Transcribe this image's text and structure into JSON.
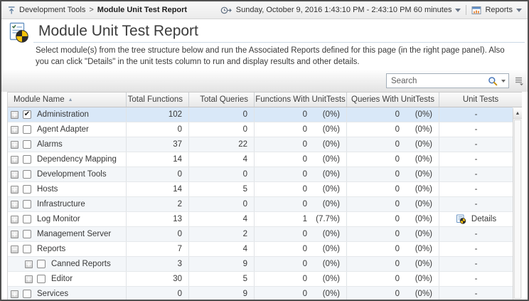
{
  "topbar": {
    "breadcrumb": {
      "parent": "Development Tools",
      "separator": ">",
      "current": "Module Unit Test Report"
    },
    "time_range_label": "Sunday, October 9, 2016 1:43:10 PM - 2:43:10 PM 60 minutes",
    "reports_label": "Reports"
  },
  "header": {
    "title": "Module Unit Test Report",
    "description": "Select module(s) from the tree structure below and run the Associated Reports defined for this page (in the right page panel). Also you can click \"Details\" in the unit tests column to run and display results and other details."
  },
  "toolbar": {
    "search_placeholder": "Search"
  },
  "icons": {
    "sort_asc": "▲",
    "scroll_up": "▲",
    "checkmark": "✔"
  },
  "colors": {
    "selected_row": "#d9e8f8",
    "stripe_row": "#f3f6f9",
    "pie_yellow": "#f6c20a",
    "pie_black": "#2b2b2b"
  },
  "table": {
    "columns": [
      {
        "label": "Module Name",
        "sorted": "asc"
      },
      {
        "label": "Total Functions"
      },
      {
        "label": "Total Queries"
      },
      {
        "label": "Functions With UnitTests"
      },
      {
        "label": "Queries With UnitTests"
      },
      {
        "label": "Unit Tests"
      }
    ],
    "rows": [
      {
        "name": "Administration",
        "level": 0,
        "expander": "plus",
        "checked": true,
        "selected": true,
        "total_functions": "102",
        "total_queries": "0",
        "functions_with_unittests": {
          "count": "0",
          "pct": "(0%)"
        },
        "queries_with_unittests": {
          "count": "0",
          "pct": "(0%)"
        },
        "unit_tests": {
          "label": "-"
        }
      },
      {
        "name": "Agent Adapter",
        "level": 0,
        "expander": "plus",
        "checked": false,
        "selected": false,
        "total_functions": "0",
        "total_queries": "0",
        "functions_with_unittests": {
          "count": "0",
          "pct": "(0%)"
        },
        "queries_with_unittests": {
          "count": "0",
          "pct": "(0%)"
        },
        "unit_tests": {
          "label": "-"
        }
      },
      {
        "name": "Alarms",
        "level": 0,
        "expander": "plus",
        "checked": false,
        "selected": false,
        "total_functions": "37",
        "total_queries": "22",
        "functions_with_unittests": {
          "count": "0",
          "pct": "(0%)"
        },
        "queries_with_unittests": {
          "count": "0",
          "pct": "(0%)"
        },
        "unit_tests": {
          "label": "-"
        }
      },
      {
        "name": "Dependency Mapping",
        "level": 0,
        "expander": "plus",
        "checked": false,
        "selected": false,
        "total_functions": "14",
        "total_queries": "4",
        "functions_with_unittests": {
          "count": "0",
          "pct": "(0%)"
        },
        "queries_with_unittests": {
          "count": "0",
          "pct": "(0%)"
        },
        "unit_tests": {
          "label": "-"
        }
      },
      {
        "name": "Development Tools",
        "level": 0,
        "expander": "plus",
        "checked": false,
        "selected": false,
        "total_functions": "0",
        "total_queries": "0",
        "functions_with_unittests": {
          "count": "0",
          "pct": "(0%)"
        },
        "queries_with_unittests": {
          "count": "0",
          "pct": "(0%)"
        },
        "unit_tests": {
          "label": "-"
        }
      },
      {
        "name": "Hosts",
        "level": 0,
        "expander": "plus",
        "checked": false,
        "selected": false,
        "total_functions": "14",
        "total_queries": "5",
        "functions_with_unittests": {
          "count": "0",
          "pct": "(0%)"
        },
        "queries_with_unittests": {
          "count": "0",
          "pct": "(0%)"
        },
        "unit_tests": {
          "label": "-"
        }
      },
      {
        "name": "Infrastructure",
        "level": 0,
        "expander": "plus",
        "checked": false,
        "selected": false,
        "total_functions": "2",
        "total_queries": "0",
        "functions_with_unittests": {
          "count": "0",
          "pct": "(0%)"
        },
        "queries_with_unittests": {
          "count": "0",
          "pct": "(0%)"
        },
        "unit_tests": {
          "label": "-"
        }
      },
      {
        "name": "Log Monitor",
        "level": 0,
        "expander": "plus",
        "checked": false,
        "selected": false,
        "total_functions": "13",
        "total_queries": "4",
        "functions_with_unittests": {
          "count": "1",
          "pct": "(7.7%)"
        },
        "queries_with_unittests": {
          "count": "0",
          "pct": "(0%)"
        },
        "unit_tests": {
          "label": "Details",
          "icon": "report-details-icon"
        }
      },
      {
        "name": "Management Server",
        "level": 0,
        "expander": "plus",
        "checked": false,
        "selected": false,
        "total_functions": "0",
        "total_queries": "2",
        "functions_with_unittests": {
          "count": "0",
          "pct": "(0%)"
        },
        "queries_with_unittests": {
          "count": "0",
          "pct": "(0%)"
        },
        "unit_tests": {
          "label": "-"
        }
      },
      {
        "name": "Reports",
        "level": 0,
        "expander": "minus",
        "checked": false,
        "selected": false,
        "total_functions": "7",
        "total_queries": "4",
        "functions_with_unittests": {
          "count": "0",
          "pct": "(0%)"
        },
        "queries_with_unittests": {
          "count": "0",
          "pct": "(0%)"
        },
        "unit_tests": {
          "label": "-"
        }
      },
      {
        "name": "Canned Reports",
        "level": 1,
        "expander": "plus",
        "checked": false,
        "selected": false,
        "total_functions": "3",
        "total_queries": "9",
        "functions_with_unittests": {
          "count": "0",
          "pct": "(0%)"
        },
        "queries_with_unittests": {
          "count": "0",
          "pct": "(0%)"
        },
        "unit_tests": {
          "label": "-"
        }
      },
      {
        "name": "Editor",
        "level": 1,
        "expander": "plus",
        "checked": false,
        "selected": false,
        "total_functions": "30",
        "total_queries": "5",
        "functions_with_unittests": {
          "count": "0",
          "pct": "(0%)"
        },
        "queries_with_unittests": {
          "count": "0",
          "pct": "(0%)"
        },
        "unit_tests": {
          "label": "-"
        }
      },
      {
        "name": "Services",
        "level": 0,
        "expander": "plus",
        "checked": false,
        "selected": false,
        "total_functions": "0",
        "total_queries": "9",
        "functions_with_unittests": {
          "count": "0",
          "pct": "(0%)"
        },
        "queries_with_unittests": {
          "count": "0",
          "pct": "(0%)"
        },
        "unit_tests": {
          "label": "-"
        }
      }
    ]
  }
}
